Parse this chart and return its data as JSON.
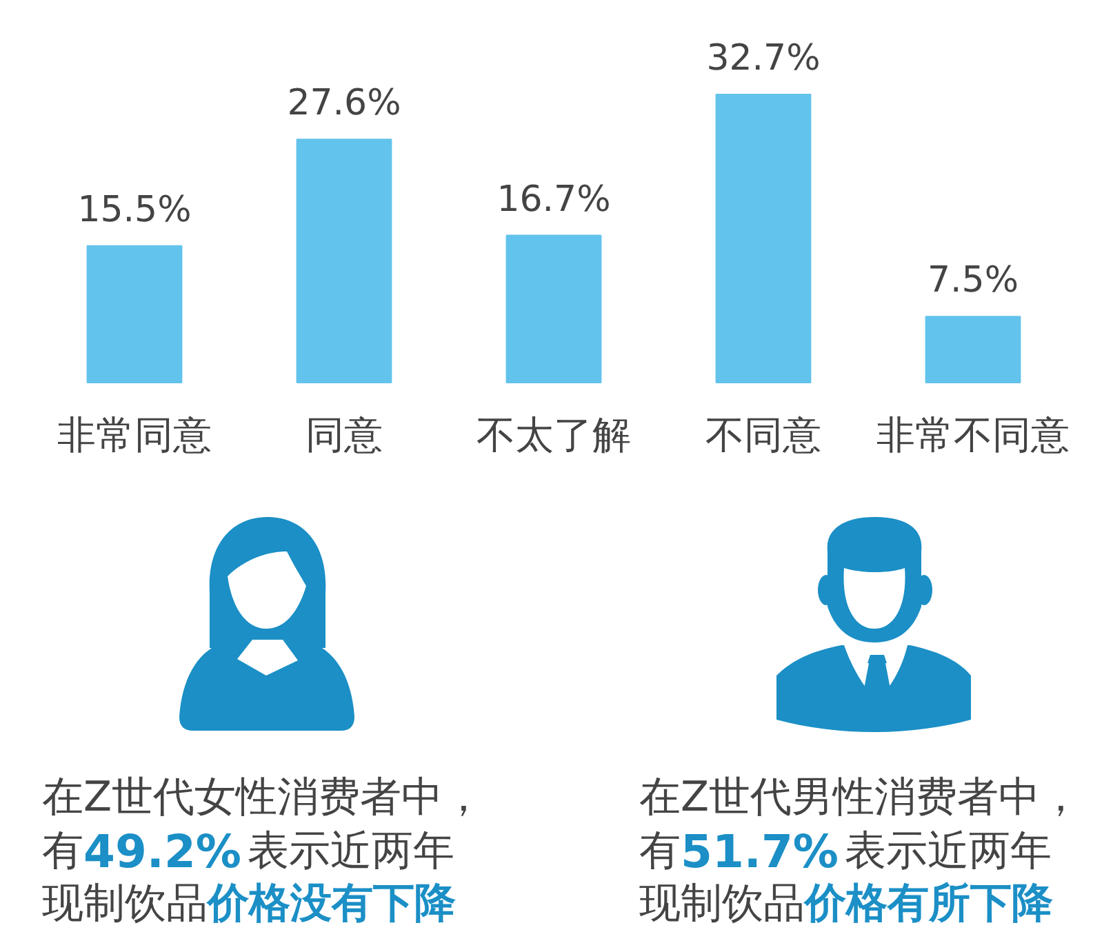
{
  "chart_data": {
    "type": "bar",
    "categories": [
      "非常同意",
      "同意",
      "不太了解",
      "不同意",
      "非常不同意"
    ],
    "values": [
      15.5,
      27.6,
      16.7,
      32.7,
      7.5
    ],
    "value_labels": [
      "15.5%",
      "27.6%",
      "16.7%",
      "32.7%",
      "7.5%"
    ],
    "color": "#62c3ec",
    "annotations": [
      "在Z世代女性消费者中，",
      "有",
      "49.2%",
      "表示近两年",
      "现制饮品",
      "价格没有下降",
      "在Z世代男性消费者中，",
      "有",
      "51.7%",
      "表示近两年",
      "现制饮品",
      "价格有所下降"
    ]
  }
}
